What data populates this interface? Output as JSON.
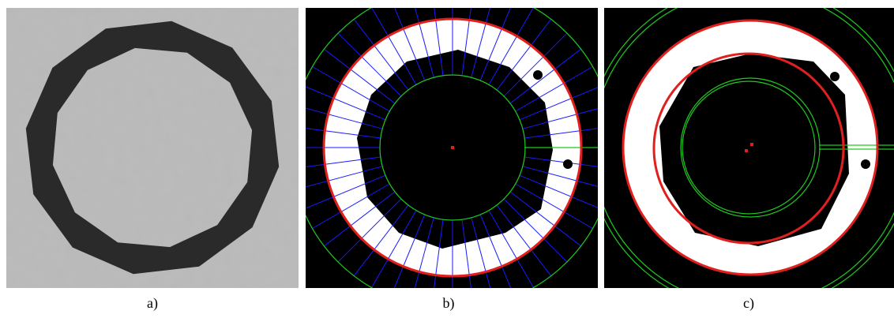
{
  "figure": {
    "panels": [
      {
        "label": "a)"
      },
      {
        "label": "b)"
      },
      {
        "label": "c)"
      }
    ]
  }
}
